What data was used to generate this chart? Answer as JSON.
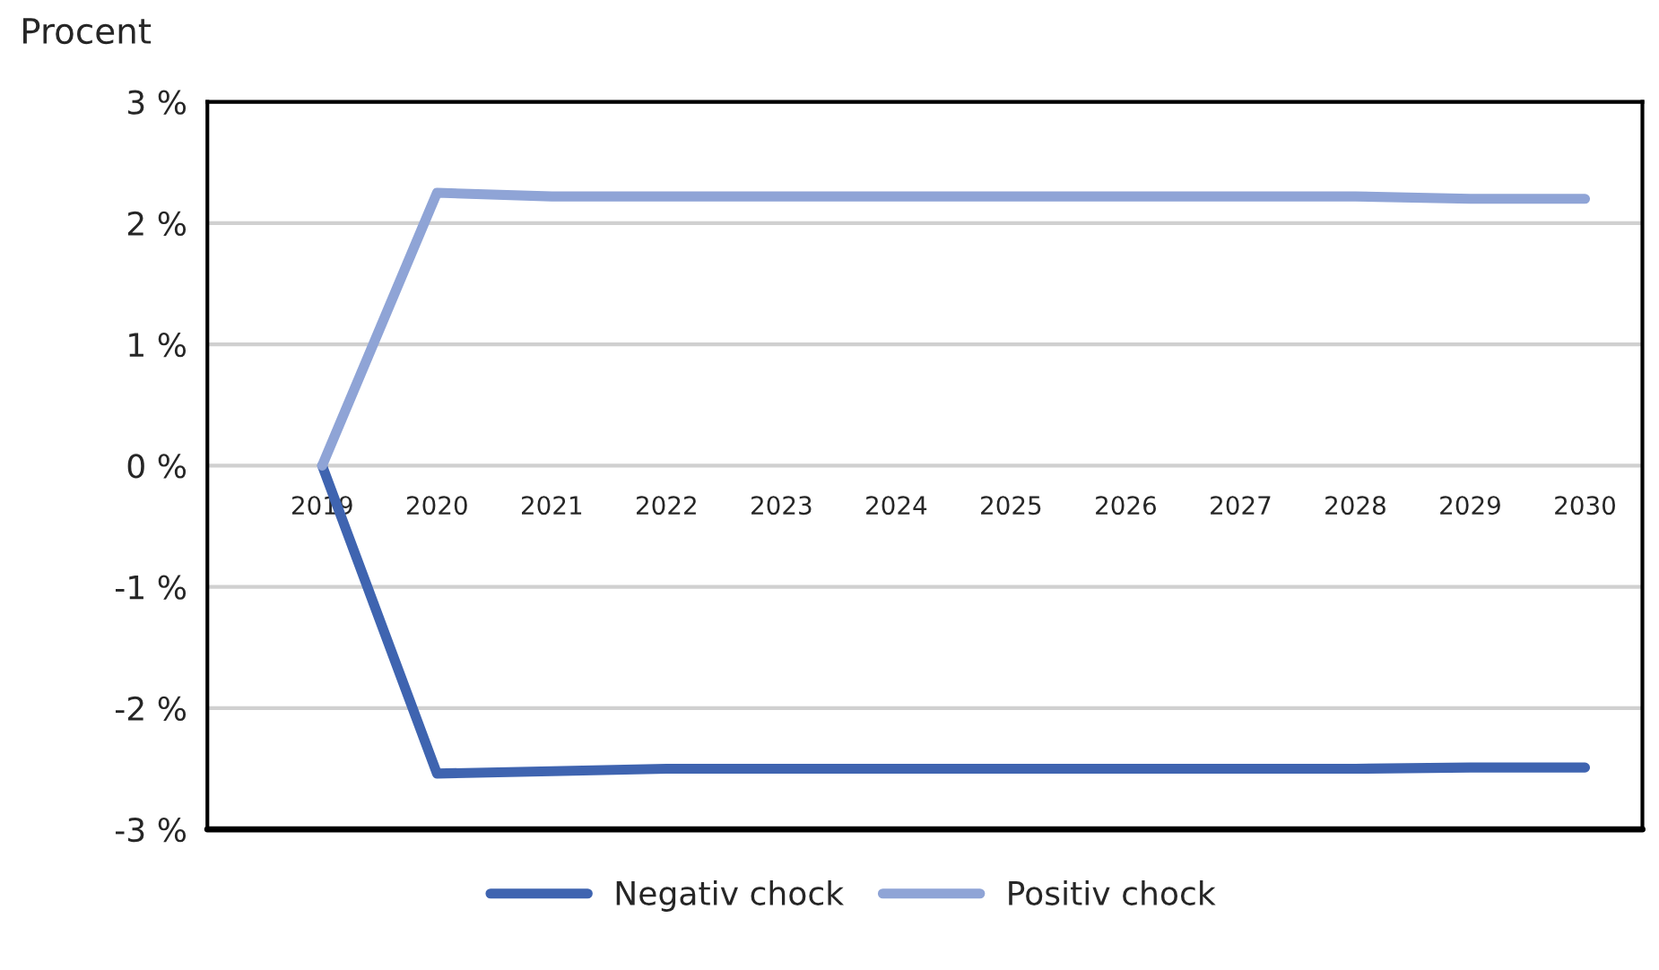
{
  "chart_data": {
    "type": "line",
    "ylabel": "Procent",
    "categories": [
      "2019",
      "2020",
      "2021",
      "2022",
      "2023",
      "2024",
      "2025",
      "2026",
      "2027",
      "2028",
      "2029",
      "2030"
    ],
    "series": [
      {
        "name": "Negativ chock",
        "color": "#3f64b0",
        "values": [
          0,
          -2.54,
          -2.52,
          -2.5,
          -2.5,
          -2.5,
          -2.5,
          -2.5,
          -2.5,
          -2.5,
          -2.49,
          -2.49
        ]
      },
      {
        "name": "Positiv chock",
        "color": "#8fa4d6",
        "values": [
          0,
          2.25,
          2.22,
          2.22,
          2.22,
          2.22,
          2.22,
          2.22,
          2.22,
          2.22,
          2.2,
          2.2
        ]
      }
    ],
    "ylim": [
      -3,
      3
    ],
    "yticks": [
      {
        "value": -3,
        "label": "-3 %"
      },
      {
        "value": -2,
        "label": "-2 %"
      },
      {
        "value": -1,
        "label": "-1 %"
      },
      {
        "value": 0,
        "label": "0 %"
      },
      {
        "value": 1,
        "label": "1 %"
      },
      {
        "value": 2,
        "label": "2 %"
      },
      {
        "value": 3,
        "label": "3 %"
      }
    ],
    "grid": "y",
    "legend": "bottom",
    "line_style": "solid",
    "marker": "none"
  }
}
